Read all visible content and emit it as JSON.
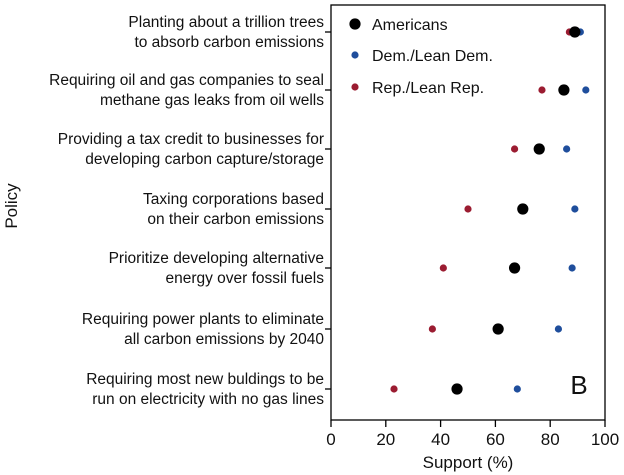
{
  "chart_data": {
    "type": "scatter",
    "xlabel": "Support (%)",
    "ylabel": "Policy",
    "xlim": [
      0,
      100
    ],
    "xticks": [
      0,
      20,
      40,
      60,
      80,
      100
    ],
    "panel_label": "B",
    "legend_position": "top-right",
    "categories": [
      [
        "Planting about a trillion trees",
        "to absorb carbon emissions"
      ],
      [
        "Requiring oil and gas companies to seal",
        "methane gas leaks from oil wells"
      ],
      [
        "Providing a tax credit to businesses for",
        "developing carbon capture/storage"
      ],
      [
        "Taxing corporations based",
        "on their carbon emissions"
      ],
      [
        "Prioritize developing alternative",
        "energy over fossil fuels"
      ],
      [
        "Requiring power plants to eliminate",
        "all carbon emissions by 2040"
      ],
      [
        "Requiring most new buldings to be",
        "run on electricity with no gas lines"
      ]
    ],
    "series": [
      {
        "name": "Americans",
        "color": "#000000",
        "marker": "large-dot",
        "values": [
          89,
          85,
          76,
          70,
          67,
          61,
          46
        ]
      },
      {
        "name": "Dem./Lean Dem.",
        "color": "#1f4e9c",
        "marker": "small-dot",
        "values": [
          91,
          93,
          86,
          89,
          88,
          83,
          68
        ]
      },
      {
        "name": "Rep./Lean Rep.",
        "color": "#9b1c31",
        "marker": "small-dot",
        "values": [
          87,
          77,
          67,
          50,
          41,
          37,
          23
        ]
      }
    ]
  }
}
